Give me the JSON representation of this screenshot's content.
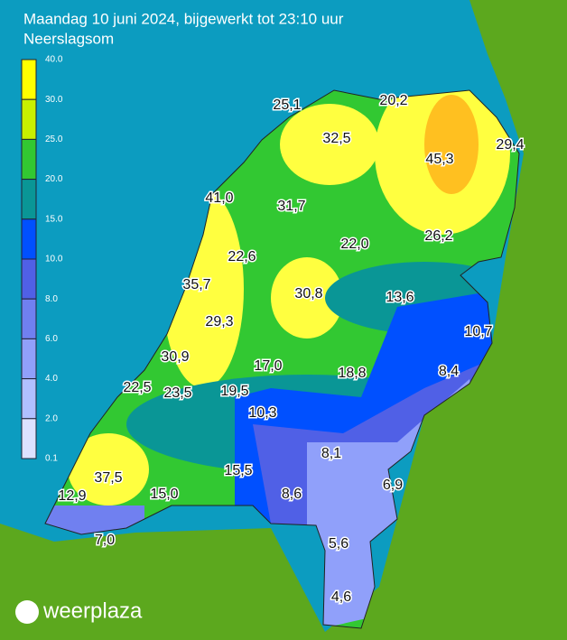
{
  "header": {
    "title": "Maandag 10 juni 2024, bijgewerkt tot 23:10 uur",
    "subtitle": "Neerslagsom"
  },
  "legend": {
    "labels": [
      "40.0",
      "30.0",
      "25.0",
      "20.0",
      "15.0",
      "10.0",
      "8.0",
      "6.0",
      "4.0",
      "2.0",
      "0.1"
    ],
    "colors": [
      "#ffff00",
      "#c8f000",
      "#32c832",
      "#0a9696",
      "#0050ff",
      "#5060e6",
      "#7080f0",
      "#90a0fa",
      "#b0c0ff",
      "#dce2ff"
    ]
  },
  "stations": [
    "25,1",
    "20,2",
    "32,5",
    "45,3",
    "29,4",
    "41,0",
    "31,7",
    "22,0",
    "26,2",
    "22,6",
    "35,7",
    "30,8",
    "13,6",
    "29,3",
    "10,7",
    "30,9",
    "17,0",
    "18,8",
    "8,4",
    "22,5",
    "23,5",
    "19,5",
    "10,3",
    "8,1",
    "37,5",
    "15,5",
    "6,9",
    "12,9",
    "15,0",
    "8,6",
    "5,6",
    "7,0",
    "4,6"
  ],
  "logo": "weerplaza"
}
